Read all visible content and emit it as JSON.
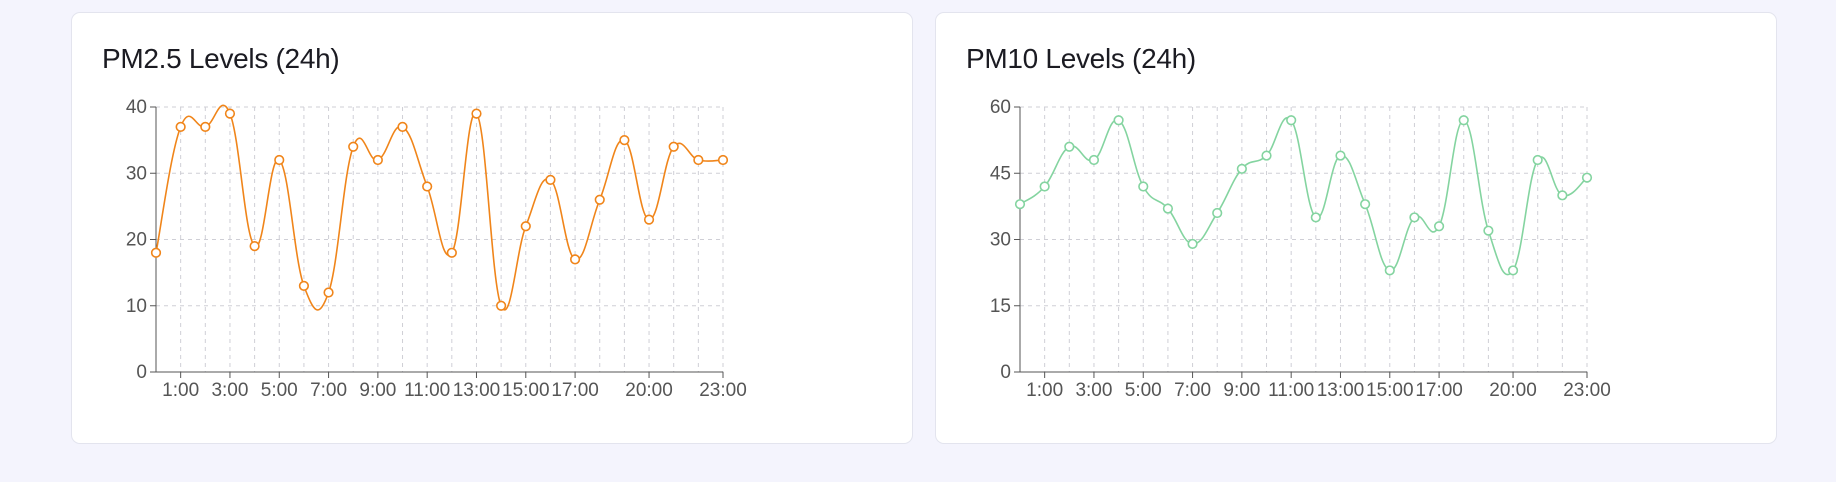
{
  "chart_data": [
    {
      "type": "line",
      "title": "PM2.5 Levels (24h)",
      "color": "#f0851a",
      "x": [
        "0:00",
        "1:00",
        "2:00",
        "3:00",
        "4:00",
        "5:00",
        "6:00",
        "7:00",
        "8:00",
        "9:00",
        "10:00",
        "11:00",
        "12:00",
        "13:00",
        "14:00",
        "15:00",
        "16:00",
        "17:00",
        "18:00",
        "19:00",
        "20:00",
        "21:00",
        "22:00",
        "23:00"
      ],
      "xtick_labels": [
        "1:00",
        "3:00",
        "5:00",
        "7:00",
        "9:00",
        "11:00",
        "13:00",
        "15:00",
        "17:00",
        "20:00",
        "23:00"
      ],
      "values": [
        18,
        37,
        37,
        39,
        19,
        32,
        13,
        12,
        34,
        32,
        37,
        28,
        18,
        39,
        10,
        22,
        29,
        17,
        26,
        35,
        23,
        34,
        32,
        32
      ],
      "ylim": [
        0,
        40
      ],
      "yticks": [
        0,
        10,
        20,
        30,
        40
      ],
      "grid": true
    },
    {
      "type": "line",
      "title": "PM10 Levels (24h)",
      "color": "#84d4a0",
      "x": [
        "0:00",
        "1:00",
        "2:00",
        "3:00",
        "4:00",
        "5:00",
        "6:00",
        "7:00",
        "8:00",
        "9:00",
        "10:00",
        "11:00",
        "12:00",
        "13:00",
        "14:00",
        "15:00",
        "16:00",
        "17:00",
        "18:00",
        "19:00",
        "20:00",
        "21:00",
        "22:00",
        "23:00"
      ],
      "xtick_labels": [
        "1:00",
        "3:00",
        "5:00",
        "7:00",
        "9:00",
        "11:00",
        "13:00",
        "15:00",
        "17:00",
        "20:00",
        "23:00"
      ],
      "values": [
        38,
        42,
        51,
        48,
        57,
        42,
        37,
        29,
        36,
        46,
        49,
        57,
        35,
        49,
        38,
        23,
        35,
        33,
        57,
        32,
        23,
        48,
        40,
        44
      ],
      "ylim": [
        0,
        60
      ],
      "yticks": [
        0,
        15,
        30,
        45,
        60
      ],
      "grid": true
    }
  ]
}
